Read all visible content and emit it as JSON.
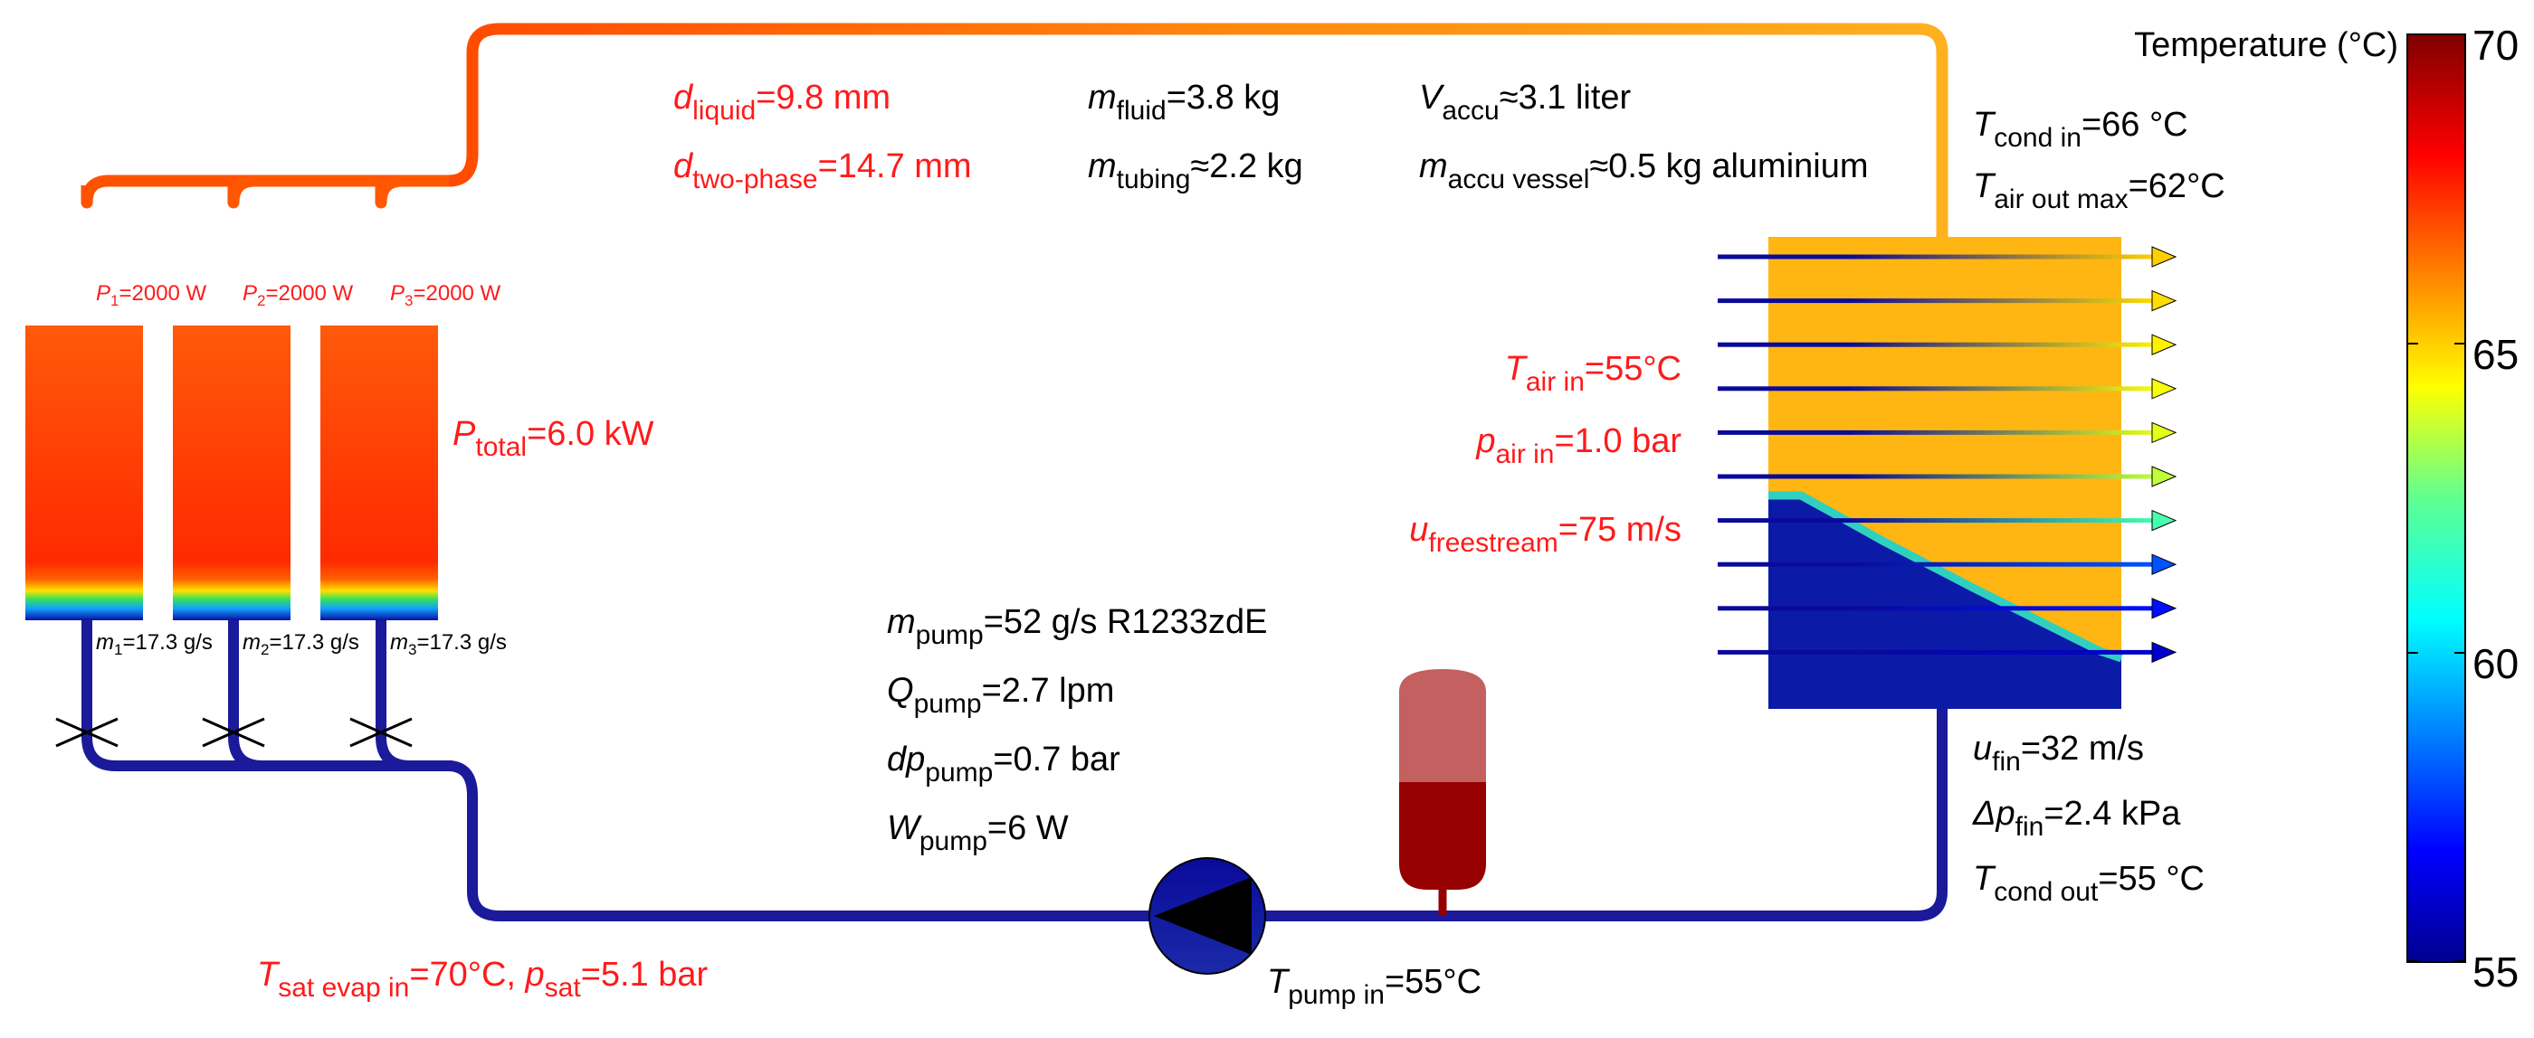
{
  "colorbar": {
    "title": "Temperature (°C)",
    "min": 55,
    "max": 70,
    "ticks": [
      "70",
      "65",
      "60",
      "55"
    ]
  },
  "colors": {
    "hot_pipe": "#ff5500",
    "warm_pipe": "#ffa020",
    "cold_pipe": "#1a1a9a",
    "label_red": "#ff1a1a",
    "accumulator_top": "#c46060",
    "accumulator_bottom": "#960000",
    "condenser_hot": "#ffb612",
    "condenser_cold": "#0c1aa8",
    "pump_fill": "#0a0a9a"
  },
  "evaporators": [
    {
      "power_sym": "P",
      "power_sub": "1",
      "power_val": "=2000 W",
      "flow_sym": "m",
      "flow_sub": "1",
      "flow_val": "=17.3 g/s"
    },
    {
      "power_sym": "P",
      "power_sub": "2",
      "power_val": "=2000 W",
      "flow_sym": "m",
      "flow_sub": "2",
      "flow_val": "=17.3 g/s"
    },
    {
      "power_sym": "P",
      "power_sub": "3",
      "power_val": "=2000 W",
      "flow_sym": "m",
      "flow_sub": "3",
      "flow_val": "=17.3 g/s"
    }
  ],
  "ptotal": {
    "sym": "P",
    "sub": "total",
    "val": "=6.0 kW"
  },
  "tubing": {
    "d_liquid": {
      "sym": "d",
      "sub": "liquid",
      "val": "=9.8 mm"
    },
    "d_two_phase": {
      "sym": "d",
      "sub": "two-phase",
      "val": "=14.7 mm"
    }
  },
  "masses": {
    "m_fluid": {
      "sym": "m",
      "sub": "fluid",
      "val": "=3.8 kg"
    },
    "m_tubing": {
      "sym": "m",
      "sub": "tubing",
      "val": "≈2.2 kg"
    }
  },
  "accumulator": {
    "v_accu": {
      "sym": "V",
      "sub": "accu",
      "val": "≈3.1 liter"
    },
    "m_vessel": {
      "sym": "m",
      "sub": "accu vessel",
      "val": "≈0.5 kg aluminium"
    }
  },
  "condenser": {
    "t_cond_in": {
      "sym": "T",
      "sub": "cond in",
      "val": "=66 °C"
    },
    "t_air_out": {
      "sym": "T",
      "sub": "air out max",
      "val": "=62°C"
    },
    "t_air_in": {
      "sym": "T",
      "sub": "air in",
      "val": "=55°C"
    },
    "p_air_in": {
      "sym": "p",
      "sub": "air in",
      "val": "=1.0 bar"
    },
    "u_freestream": {
      "sym": "u",
      "sub": "freestream",
      "val": "=75 m/s"
    },
    "u_fin": {
      "sym": "u",
      "sub": "fin",
      "val": "=32 m/s"
    },
    "dp_fin": {
      "sym": "Δp",
      "sub": "fin",
      "val": "=2.4 kPa"
    },
    "t_cond_out": {
      "sym": "T",
      "sub": "cond out",
      "val": "=55 °C"
    },
    "air_arrow_temps": [
      65,
      64.8,
      64.5,
      64.2,
      64,
      63.6,
      62,
      58,
      57,
      56
    ]
  },
  "pump": {
    "m_pump": {
      "sym": "m",
      "sub": "pump",
      "val": "=52 g/s R1233zdE"
    },
    "q_pump": {
      "sym": "Q",
      "sub": "pump",
      "val": "=2.7 lpm"
    },
    "dp_pump": {
      "sym": "dp",
      "sub": "pump",
      "val": "=0.7 bar"
    },
    "w_pump": {
      "sym": "W",
      "sub": "pump",
      "val": "=6 W"
    },
    "t_pump_in": {
      "sym": "T",
      "sub": "pump in",
      "val": "=55°C"
    }
  },
  "evaporator_inlet": {
    "t_sat": {
      "sym": "T",
      "sub": "sat evap in",
      "val": "=70°C, "
    },
    "p_sat": {
      "sym": "p",
      "sub": "sat",
      "val": "=5.1 bar"
    }
  }
}
